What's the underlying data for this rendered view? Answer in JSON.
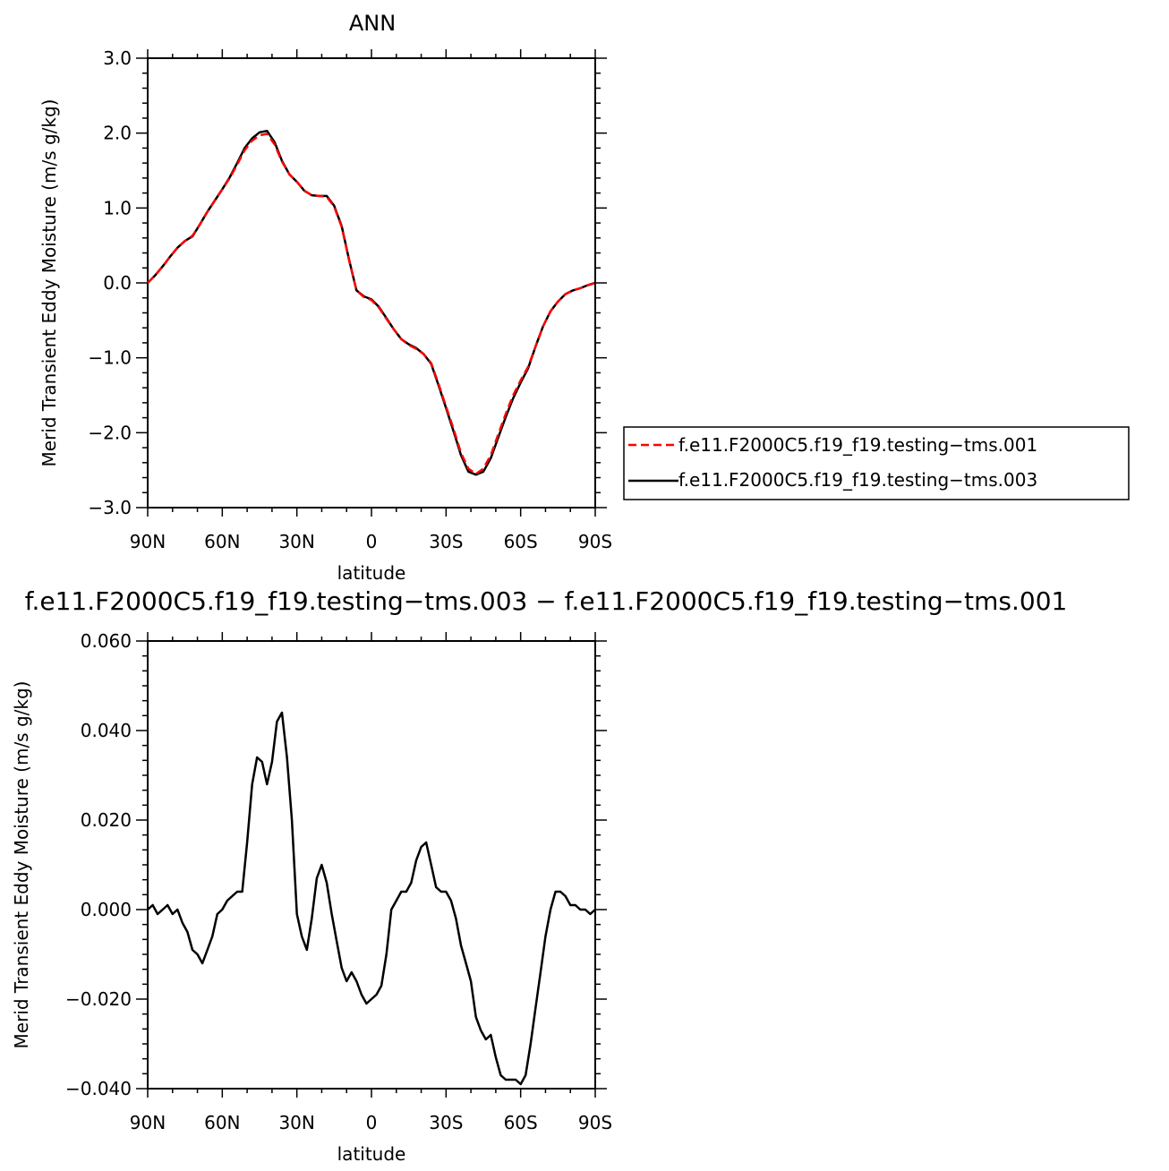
{
  "chart_data": [
    {
      "type": "line",
      "title": "ANN",
      "xlabel": "latitude",
      "ylabel": "Merid Transient Eddy Moisture (m/s g/kg)",
      "xlim": [
        90,
        -90
      ],
      "ylim": [
        -3.0,
        3.0
      ],
      "x_tick_values": [
        90,
        60,
        30,
        0,
        -30,
        -60,
        -90
      ],
      "x_tick_labels": [
        "90N",
        "60N",
        "30N",
        "0",
        "30S",
        "60S",
        "90S"
      ],
      "y_tick_values": [
        3.0,
        2.0,
        1.0,
        0.0,
        -1.0,
        -2.0,
        -3.0
      ],
      "y_tick_labels": [
        "3.0",
        "2.0",
        "1.0",
        "0.0",
        "−1.0",
        "−2.0",
        "−3.0"
      ],
      "legend_position": "right",
      "series": [
        {
          "name": "f.e11.F2000C5.f19_f19.testing−tms.001",
          "color": "#ff0000",
          "style": "dashed",
          "x": [
            90,
            87,
            84,
            81,
            78,
            75,
            72,
            69,
            66,
            63,
            60,
            57,
            54,
            51,
            48,
            45,
            42,
            39,
            36,
            33,
            30,
            27,
            24,
            21,
            18,
            15,
            12,
            9,
            6,
            3,
            0,
            -3,
            -6,
            -9,
            -12,
            -15,
            -18,
            -21,
            -24,
            -27,
            -30,
            -33,
            -36,
            -39,
            -42,
            -45,
            -48,
            -51,
            -54,
            -57,
            -60,
            -63,
            -66,
            -69,
            -72,
            -75,
            -78,
            -81,
            -84,
            -87,
            -90
          ],
          "y": [
            0.0,
            0.1,
            0.22,
            0.35,
            0.47,
            0.56,
            0.63,
            0.78,
            0.95,
            1.1,
            1.25,
            1.4,
            1.58,
            1.77,
            1.9,
            1.97,
            1.99,
            1.85,
            1.62,
            1.45,
            1.35,
            1.23,
            1.17,
            1.16,
            1.15,
            1.02,
            0.75,
            0.3,
            -0.1,
            -0.19,
            -0.23,
            -0.33,
            -0.48,
            -0.62,
            -0.75,
            -0.83,
            -0.88,
            -0.95,
            -1.07,
            -1.35,
            -1.65,
            -1.95,
            -2.27,
            -2.48,
            -2.55,
            -2.48,
            -2.3,
            -2.02,
            -1.75,
            -1.5,
            -1.3,
            -1.12,
            -0.85,
            -0.58,
            -0.38,
            -0.25,
            -0.15,
            -0.1,
            -0.07,
            -0.03,
            0.0
          ]
        },
        {
          "name": "f.e11.F2000C5.f19_f19.testing−tms.003",
          "color": "#000000",
          "style": "solid",
          "x": [
            90,
            87,
            84,
            81,
            78,
            75,
            72,
            69,
            66,
            63,
            60,
            57,
            54,
            51,
            48,
            45,
            42,
            39,
            36,
            33,
            30,
            27,
            24,
            21,
            18,
            15,
            12,
            9,
            6,
            3,
            0,
            -3,
            -6,
            -9,
            -12,
            -15,
            -18,
            -21,
            -24,
            -27,
            -30,
            -33,
            -36,
            -39,
            -42,
            -45,
            -48,
            -51,
            -54,
            -57,
            -60,
            -63,
            -66,
            -69,
            -72,
            -75,
            -78,
            -81,
            -84,
            -87,
            -90
          ],
          "y": [
            0.0,
            0.1,
            0.22,
            0.35,
            0.47,
            0.56,
            0.62,
            0.78,
            0.95,
            1.1,
            1.25,
            1.41,
            1.6,
            1.8,
            1.93,
            2.01,
            2.03,
            1.88,
            1.63,
            1.45,
            1.35,
            1.23,
            1.17,
            1.16,
            1.16,
            1.03,
            0.76,
            0.31,
            -0.1,
            -0.18,
            -0.22,
            -0.32,
            -0.47,
            -0.62,
            -0.75,
            -0.82,
            -0.87,
            -0.95,
            -1.08,
            -1.37,
            -1.67,
            -1.98,
            -2.3,
            -2.52,
            -2.56,
            -2.52,
            -2.34,
            -2.06,
            -1.79,
            -1.54,
            -1.33,
            -1.14,
            -0.85,
            -0.58,
            -0.38,
            -0.25,
            -0.15,
            -0.1,
            -0.07,
            -0.03,
            0.0
          ]
        }
      ]
    },
    {
      "type": "line",
      "title": "f.e11.F2000C5.f19_f19.testing−tms.003 − f.e11.F2000C5.f19_f19.testing−tms.001",
      "xlabel": "latitude",
      "ylabel": "Merid Transient Eddy Moisture (m/s g/kg)",
      "xlim": [
        90,
        -90
      ],
      "ylim": [
        -0.04,
        0.06
      ],
      "x_tick_values": [
        90,
        60,
        30,
        0,
        -30,
        -60,
        -90
      ],
      "x_tick_labels": [
        "90N",
        "60N",
        "30N",
        "0",
        "30S",
        "60S",
        "90S"
      ],
      "y_tick_values": [
        0.06,
        0.04,
        0.02,
        0.0,
        -0.02,
        -0.04
      ],
      "y_tick_labels": [
        "0.060",
        "0.040",
        "0.020",
        "0.000",
        "−0.020",
        "−0.040"
      ],
      "series": [
        {
          "color": "#000000",
          "style": "solid",
          "x": [
            90,
            88,
            86,
            84,
            82,
            80,
            78,
            76,
            74,
            72,
            70,
            68,
            66,
            64,
            62,
            60,
            58,
            56,
            54,
            52,
            50,
            48,
            46,
            44,
            42,
            40,
            38,
            36,
            34,
            32,
            30,
            28,
            26,
            24,
            22,
            20,
            18,
            16,
            14,
            12,
            10,
            8,
            6,
            4,
            2,
            0,
            -2,
            -4,
            -6,
            -8,
            -10,
            -12,
            -14,
            -16,
            -18,
            -20,
            -22,
            -24,
            -26,
            -28,
            -30,
            -32,
            -34,
            -36,
            -38,
            -40,
            -42,
            -44,
            -46,
            -48,
            -50,
            -52,
            -54,
            -56,
            -58,
            -60,
            -62,
            -64,
            -66,
            -68,
            -70,
            -72,
            -74,
            -76,
            -78,
            -80,
            -82,
            -84,
            -86,
            -88,
            -90
          ],
          "y": [
            0.0,
            0.001,
            -0.001,
            0.0,
            0.001,
            -0.001,
            0.0,
            -0.003,
            -0.005,
            -0.009,
            -0.01,
            -0.012,
            -0.009,
            -0.006,
            -0.001,
            0.0,
            0.002,
            0.003,
            0.004,
            0.004,
            0.015,
            0.028,
            0.034,
            0.033,
            0.028,
            0.033,
            0.042,
            0.044,
            0.034,
            0.02,
            -0.001,
            -0.006,
            -0.009,
            -0.002,
            0.007,
            0.01,
            0.006,
            -0.001,
            -0.007,
            -0.013,
            -0.016,
            -0.014,
            -0.016,
            -0.019,
            -0.021,
            -0.02,
            -0.019,
            -0.017,
            -0.01,
            0.0,
            0.002,
            0.004,
            0.004,
            0.006,
            0.011,
            0.014,
            0.015,
            0.01,
            0.005,
            0.004,
            0.004,
            0.002,
            -0.002,
            -0.008,
            -0.012,
            -0.016,
            -0.024,
            -0.027,
            -0.029,
            -0.028,
            -0.033,
            -0.037,
            -0.038,
            -0.038,
            -0.038,
            -0.039,
            -0.037,
            -0.03,
            -0.022,
            -0.014,
            -0.006,
            0.0,
            0.004,
            0.004,
            0.003,
            0.001,
            0.001,
            0.0,
            0.0,
            -0.001,
            0.0
          ]
        }
      ]
    }
  ],
  "colors": {
    "series_001": "#ff0000",
    "series_003": "#000000",
    "axes": "#000000",
    "background": "#ffffff"
  }
}
